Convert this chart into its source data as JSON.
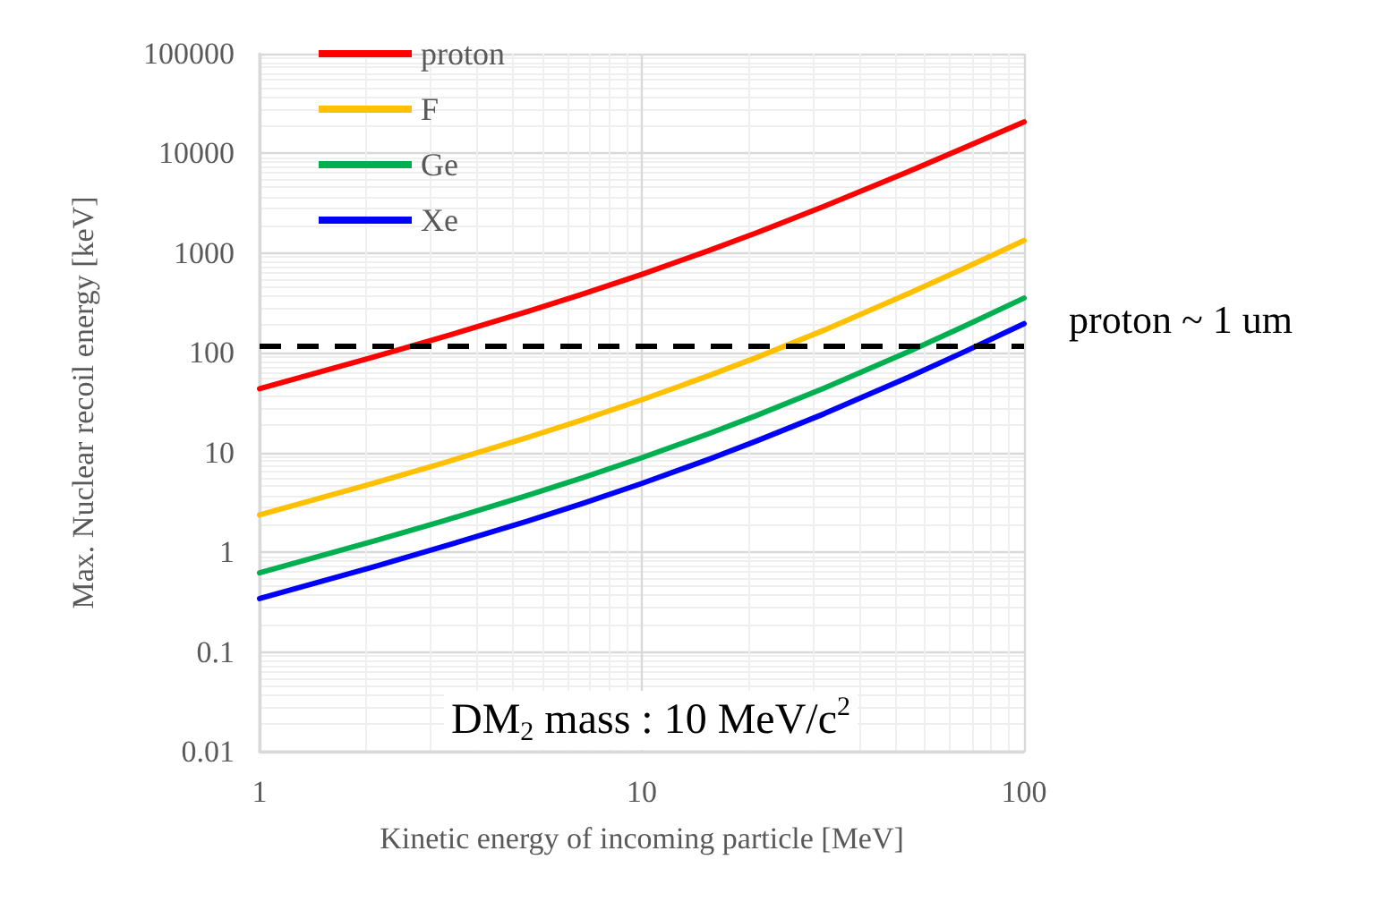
{
  "chart_data": {
    "type": "line",
    "xlabel": "Kinetic energy of incoming particle [MeV]",
    "ylabel": "Max. Nuclear recoil energy [keV]",
    "log": "xy",
    "x": [
      1,
      2,
      3,
      5,
      7,
      10,
      15,
      20,
      30,
      50,
      70,
      100
    ],
    "xlim": [
      1,
      100
    ],
    "xticks": [
      1,
      10,
      100
    ],
    "ylim": [
      0.01,
      100000
    ],
    "yticks": [
      0.01,
      0.1,
      1,
      10,
      100,
      1000,
      10000,
      100000
    ],
    "grid": true,
    "legend": "top left",
    "marker": "none",
    "line_style": "solid",
    "series": [
      {
        "name": "proton",
        "color": "#ff0000",
        "values": [
          43.7,
          91.4,
          143,
          258,
          389,
          613,
          1062,
          1603,
          2946,
          6614,
          11471,
          20718
        ]
      },
      {
        "name": "F",
        "color": "#ffc000",
        "values": [
          2.37,
          4.97,
          7.79,
          14.1,
          21.3,
          33.8,
          59.2,
          90.1,
          169,
          395,
          709,
          1339
        ]
      },
      {
        "name": "Ge",
        "color": "#00b050",
        "values": [
          0.621,
          1.3,
          2.04,
          3.69,
          5.59,
          8.87,
          15.5,
          23.6,
          44.3,
          103,
          186,
          354
        ]
      },
      {
        "name": "Xe",
        "color": "#0000ff",
        "values": [
          0.343,
          0.719,
          1.13,
          2.04,
          3.09,
          4.9,
          8.58,
          13.1,
          24.5,
          57.2,
          103,
          196
        ]
      }
    ],
    "ref_lines": [
      {
        "axis": "y",
        "value": 117,
        "label": "proton ~ 1 um",
        "color": "#000000",
        "line_style": "dashed"
      }
    ],
    "annotations": [
      "DM$_{2}$ mass : 10 MeV/c$^{2}$"
    ]
  }
}
